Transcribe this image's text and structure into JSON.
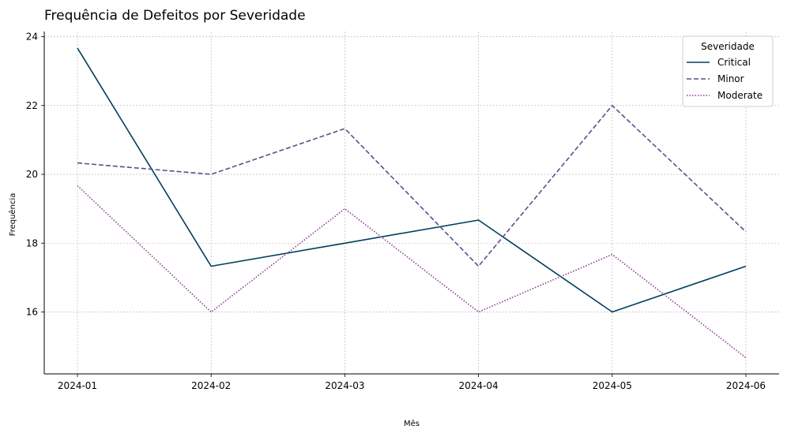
{
  "chart_data": {
    "type": "line",
    "title": "Frequência de Defeitos por Severidade",
    "xlabel": "Mês",
    "ylabel": "Frequência",
    "categories": [
      "2024-01",
      "2024-02",
      "2024-03",
      "2024-04",
      "2024-05",
      "2024-06"
    ],
    "yticks": [
      16,
      18,
      20,
      22,
      24
    ],
    "ylim": [
      14.2,
      24.15
    ],
    "grid": true,
    "legend": {
      "title": "Severidade",
      "placement": "top-right"
    },
    "series": [
      {
        "name": "Critical",
        "values": [
          23.67,
          17.33,
          18.0,
          18.67,
          16.0,
          17.33
        ],
        "color": "#003f5c",
        "dash": "solid"
      },
      {
        "name": "Minor",
        "values": [
          20.33,
          20.0,
          21.33,
          17.33,
          22.0,
          18.33
        ],
        "color": "#58508d",
        "dash": "dashed"
      },
      {
        "name": "Moderate",
        "values": [
          19.67,
          16.0,
          19.0,
          16.0,
          17.67,
          14.67
        ],
        "color": "#8e3e93",
        "dash": "dotted"
      }
    ]
  }
}
